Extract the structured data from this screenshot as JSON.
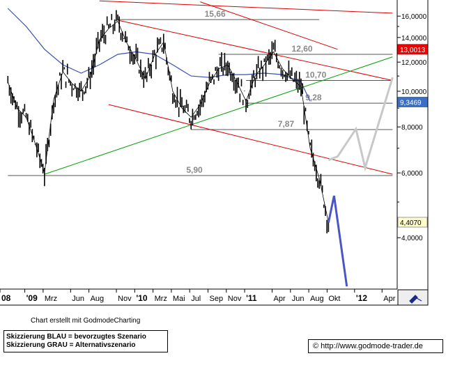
{
  "chart_data": {
    "type": "line",
    "y_scale": "log",
    "ylim": [
      2900,
      17700
    ],
    "y_ticks": [
      "4,0000",
      "6,0000",
      "8,0000",
      "10,0000",
      "12,0000",
      "14,0000",
      "16,0000"
    ],
    "y_tick_values": [
      4000,
      6000,
      8000,
      10000,
      12000,
      14000,
      16000
    ],
    "x_ticks": [
      "08",
      "'09",
      "Mrz",
      "Jun",
      "Aug",
      "Nov",
      "'10",
      "Mrz",
      "Mai",
      "Jul",
      "Sep",
      "Nov",
      "'11",
      "Apr",
      "Jun",
      "Aug",
      "Okt",
      "'12",
      "Apr"
    ],
    "x_range_months": [
      "2008-11",
      "2012-05"
    ],
    "price_series": {
      "name": "",
      "color": "#000000",
      "points": [
        [
          "2008-11",
          10600
        ],
        [
          "2008-12",
          9000
        ],
        [
          "2009-01",
          8500
        ],
        [
          "2009-02",
          7200
        ],
        [
          "2009-03",
          6000
        ],
        [
          "2009-04",
          9500
        ],
        [
          "2009-05",
          11300
        ],
        [
          "2009-06",
          10500
        ],
        [
          "2009-07",
          10000
        ],
        [
          "2009-08",
          11000
        ],
        [
          "2009-09",
          13800
        ],
        [
          "2009-10",
          14800
        ],
        [
          "2009-11",
          15500
        ],
        [
          "2009-12",
          13500
        ],
        [
          "2010-01",
          12200
        ],
        [
          "2010-02",
          10800
        ],
        [
          "2010-03",
          12500
        ],
        [
          "2010-04",
          13600
        ],
        [
          "2010-05",
          10000
        ],
        [
          "2010-06",
          9000
        ],
        [
          "2010-07",
          8500
        ],
        [
          "2010-08",
          9200
        ],
        [
          "2010-09",
          10500
        ],
        [
          "2010-10",
          11500
        ],
        [
          "2010-11",
          11800
        ],
        [
          "2010-12",
          10600
        ],
        [
          "2011-01",
          9400
        ],
        [
          "2011-02",
          11000
        ],
        [
          "2011-03",
          11800
        ],
        [
          "2011-04",
          12800
        ],
        [
          "2011-05",
          11500
        ],
        [
          "2011-06",
          10800
        ],
        [
          "2011-07",
          10300
        ],
        [
          "2011-08",
          7000
        ],
        [
          "2011-09",
          5800
        ],
        [
          "2011-10",
          4400
        ]
      ]
    },
    "moving_average": {
      "name": "",
      "color": "#3a4fb8",
      "points": [
        [
          "2008-11",
          16800
        ],
        [
          "2009-01",
          15000
        ],
        [
          "2009-03",
          13000
        ],
        [
          "2009-05",
          11800
        ],
        [
          "2009-07",
          11200
        ],
        [
          "2009-09",
          11800
        ],
        [
          "2009-11",
          12600
        ],
        [
          "2010-01",
          12800
        ],
        [
          "2010-03",
          12600
        ],
        [
          "2010-05",
          11800
        ],
        [
          "2010-07",
          11000
        ],
        [
          "2010-09",
          10900
        ],
        [
          "2010-11",
          11100
        ],
        [
          "2011-01",
          11100
        ],
        [
          "2011-03",
          11200
        ],
        [
          "2011-05",
          11100
        ],
        [
          "2011-07",
          10600
        ],
        [
          "2011-08",
          9400
        ]
      ]
    },
    "horizontal_levels": [
      {
        "label": "15,66",
        "value": 15660,
        "from": "2009-11",
        "to": "2011-09"
      },
      {
        "label": "12,60",
        "value": 12600,
        "from": "2010-10",
        "to": "2012-05"
      },
      {
        "label": "10,70",
        "value": 10700,
        "from": "2011-01",
        "to": "2012-05"
      },
      {
        "label": "9,28",
        "value": 9280,
        "from": "2011-01",
        "to": "2012-05"
      },
      {
        "label": "7,87",
        "value": 7870,
        "from": "2010-07",
        "to": "2012-05"
      },
      {
        "label": "5,90",
        "value": 5900,
        "from": "2008-11",
        "to": "2012-05"
      }
    ],
    "trend_lines": [
      {
        "color": "#dd0000",
        "from": [
          "2009-11",
          15600
        ],
        "to": [
          "2012-05",
          10700
        ]
      },
      {
        "color": "#dd0000",
        "from": [
          "2009-10",
          9200
        ],
        "to": [
          "2012-05",
          5950
        ]
      },
      {
        "color": "#dd0000",
        "from": [
          "2009-09",
          17600
        ],
        "to": [
          "2012-05",
          16300
        ]
      },
      {
        "color": "#dd0000",
        "from": [
          "2010-08",
          17500
        ],
        "to": [
          "2011-11",
          13000
        ]
      },
      {
        "color": "#00a000",
        "from": [
          "2009-03",
          5950
        ],
        "to": [
          "2012-05",
          12400
        ]
      }
    ],
    "scenarios": [
      {
        "name": "Skizzierung BLAU = bevorzugtes Szenario",
        "color": "#4a56c4",
        "points": [
          [
            "2011-10",
            4400
          ],
          [
            "2011-10",
            5200
          ],
          [
            "2011-12",
            2950
          ]
        ]
      },
      {
        "name": "Skizzierung GRAU = Alternativszenario",
        "color": "#c8c8c8",
        "points": [
          [
            "2011-10",
            6500
          ],
          [
            "2011-11",
            6650
          ],
          [
            "2012-01",
            7900
          ],
          [
            "2012-02",
            6200
          ],
          [
            "2012-05",
            10900
          ]
        ]
      }
    ],
    "value_tags": [
      {
        "label": "13,0013",
        "value": 13000,
        "bg": "#ee0000",
        "color": "#ffffff"
      },
      {
        "label": "9,3469",
        "value": 9347,
        "bg": "#3a6fc4",
        "color": "#ffffff"
      },
      {
        "label": "4,4070",
        "value": 4407,
        "bg": "#ffffcc",
        "color": "#000000"
      }
    ]
  },
  "footer": {
    "credit": "Chart erstellt mit GodmodeCharting",
    "legend_blue": "Skizzierung BLAU = bevorzugtes Szenario",
    "legend_gray": "Skizzierung GRAU = Alternativszenario",
    "url": "© http://www.godmode-trader.de"
  }
}
